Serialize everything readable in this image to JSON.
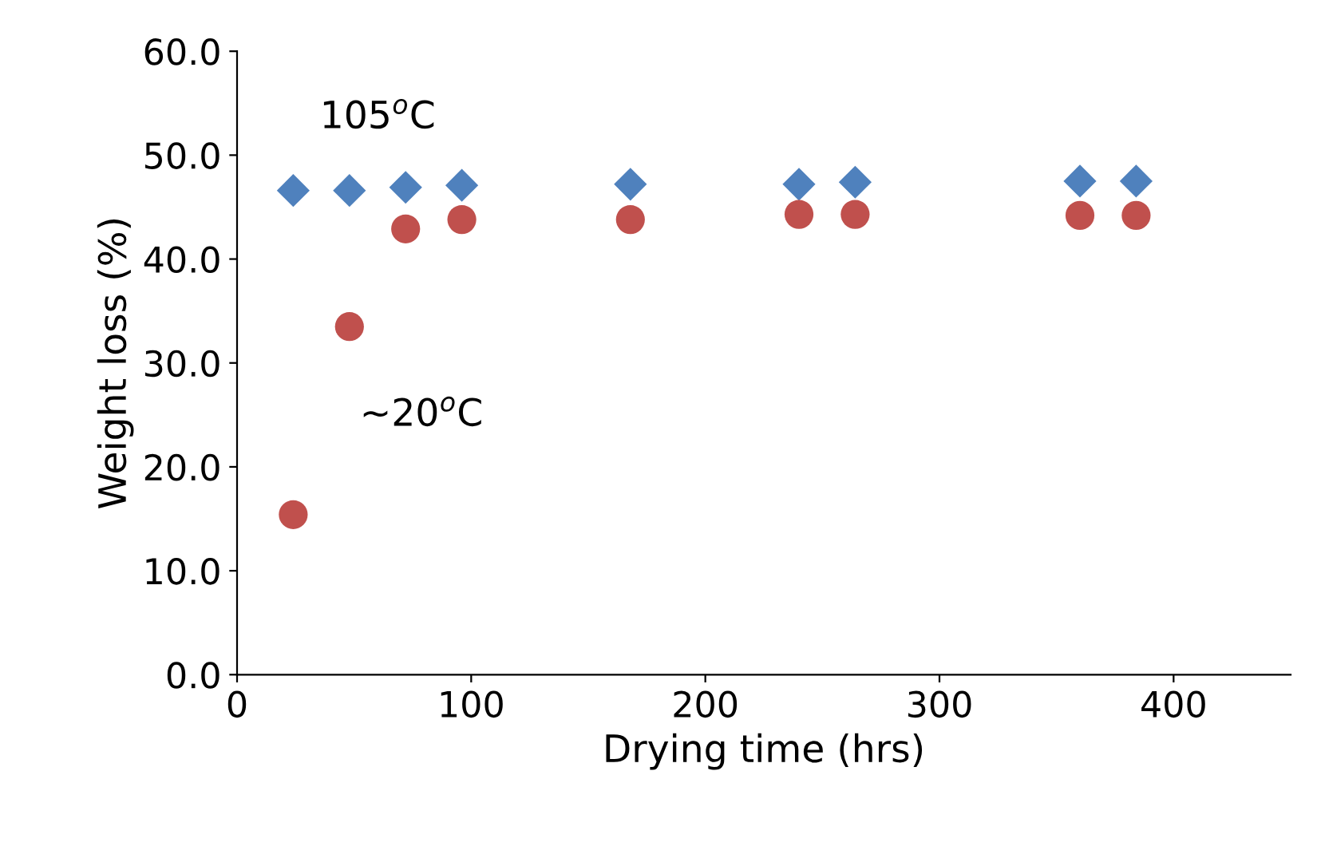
{
  "chart_data": {
    "type": "scatter",
    "xlabel": "Drying time (hrs)",
    "ylabel": "Weight loss (%)",
    "xlim": [
      0,
      450
    ],
    "xticks": [
      0,
      100,
      200,
      300,
      400
    ],
    "ylim": [
      0,
      60
    ],
    "yticks": [
      {
        "value": 0,
        "label": "0.0"
      },
      {
        "value": 10,
        "label": "10.0"
      },
      {
        "value": 20,
        "label": "20.0"
      },
      {
        "value": 30,
        "label": "30.0"
      },
      {
        "value": 40,
        "label": "40.0"
      },
      {
        "value": 50,
        "label": "50.0"
      },
      {
        "value": 60,
        "label": "60.0"
      }
    ],
    "grid": false,
    "series": [
      {
        "color": "#4f81bd",
        "marker": "diamond",
        "x": [
          24,
          48,
          72,
          96,
          168,
          240,
          264,
          360,
          384
        ],
        "values": [
          46.6,
          46.6,
          46.9,
          47.1,
          47.2,
          47.2,
          47.4,
          47.5,
          47.5
        ]
      },
      {
        "color": "#c0504d",
        "marker": "circle",
        "x": [
          24,
          48,
          72,
          96,
          168,
          240,
          264,
          360,
          384
        ],
        "values": [
          15.4,
          33.5,
          42.9,
          43.8,
          43.8,
          44.3,
          44.3,
          44.2,
          44.2
        ]
      }
    ],
    "annotations": [
      "105$^{o}$C",
      "~20$^{o}$C"
    ]
  }
}
